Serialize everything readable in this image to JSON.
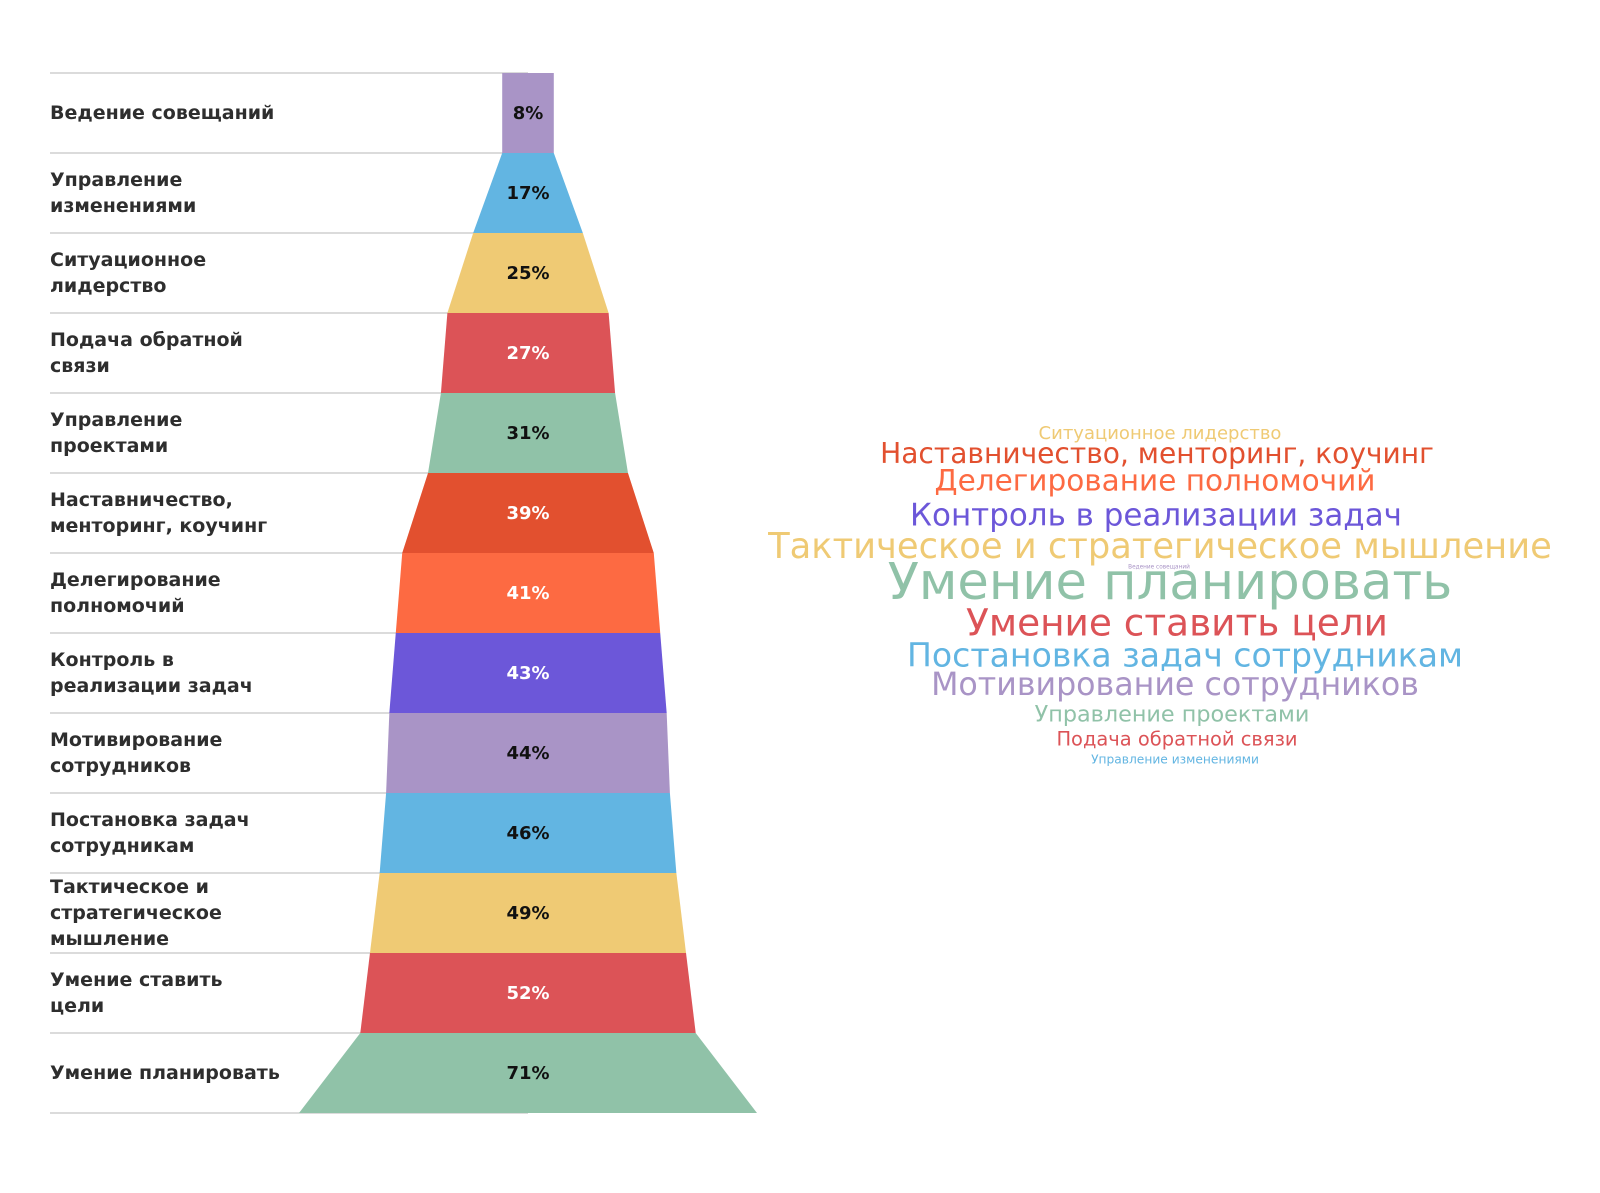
{
  "chart_data": {
    "type": "funnel",
    "categories": [
      "Ведение совещаний",
      "Управление изменениями",
      "Ситуационное лидерство",
      "Подача обратной связи",
      "Управление проектами",
      "Наставничество, менторинг, коучинг",
      "Делегирование полномочий",
      "Контроль в реализации задач",
      "Мотивирование сотрудников",
      "Постановка задач сотрудникам",
      "Тактическое и стратегическое мышление",
      "Умение ставить цели",
      "Умение планировать"
    ],
    "values": [
      8,
      17,
      25,
      27,
      31,
      39,
      41,
      43,
      44,
      46,
      49,
      52,
      71
    ],
    "value_labels": [
      "8%",
      "17%",
      "25%",
      "27%",
      "31%",
      "39%",
      "41%",
      "43%",
      "44%",
      "46%",
      "49%",
      "52%",
      "71%"
    ],
    "colors": [
      "#a994c6",
      "#62b5e2",
      "#efca74",
      "#dc5357",
      "#90c2a8",
      "#e2502f",
      "#fd6a42",
      "#6c57d9",
      "#a994c6",
      "#62b5e2",
      "#efca74",
      "#dc5357",
      "#90c2a8"
    ]
  }
}
